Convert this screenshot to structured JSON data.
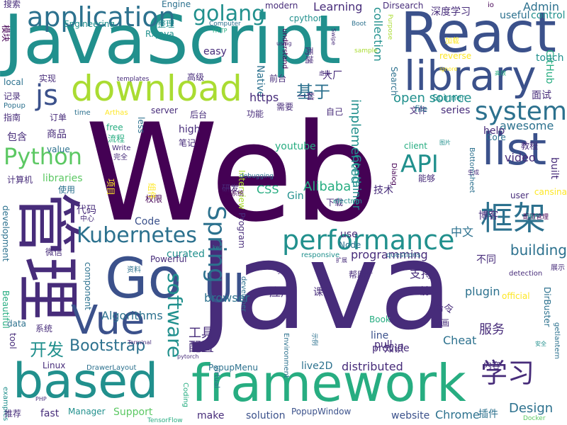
{
  "palette": {
    "background": "#ffffff",
    "dark_purple": "#440154",
    "indigo": "#472c7a",
    "slate_blue": "#3b518b",
    "steel_blue": "#2c718e",
    "teal": "#21908d",
    "sea_green": "#27ad81",
    "green": "#5cc863",
    "lime": "#aadc32",
    "yellow": "#fde725"
  },
  "words": [
    "Web",
    "Java",
    "JavaScript",
    "React",
    "framework",
    "管理",
    "based",
    "library",
    "Go",
    "list",
    "download",
    "application",
    "Vue",
    "UI",
    "框架",
    "system",
    "performance",
    "Python",
    "Spring",
    "Kubernetes",
    "学习",
    "js",
    "API",
    "golang",
    "Alibaba",
    "software",
    "open source",
    "基于",
    "Bootstrap",
    "开发",
    "building",
    "programming",
    "distributed",
    "Algorithms",
    "Container",
    "browser",
    "awesome",
    "collection",
    "implemented",
    "plugin",
    "工具",
    "配置",
    "Chrome",
    "Design",
    "Cheat",
    "服务",
    "应用",
    "支持",
    "video",
    "Learning",
    "Admin",
    "深度学习",
    "Dirsearch",
    "modern",
    "cpython",
    "Engine",
    "搜索",
    "Engineering",
    "RxJava",
    "Native",
    "understand",
    "https",
    "Search",
    "GitHub",
    "control",
    "touch",
    "easy",
    "Computer",
    "Boot",
    "useful",
    "Purpose",
    "模块",
    "实现",
    "local",
    "记录",
    "指南",
    "Popup",
    "订单",
    "time",
    "Arthas",
    "商品",
    "包含",
    "high",
    "free",
    "流程",
    "笔记",
    "value",
    "Write",
    "完全",
    "计算机",
    "libraries",
    "使用",
    "代码",
    "中心",
    "权限",
    "Code",
    "development",
    "curated",
    "component",
    "Beautiful",
    "微信",
    "资料",
    "Powerful",
    "data",
    "系统",
    "examples",
    "推荐",
    "fast",
    "Manager",
    "Support",
    "make",
    "solution",
    "website",
    "插件",
    "PopupWindow",
    "PopupMenu",
    "live2D",
    "DrawerLayout",
    "Linux",
    "tool",
    "Coding",
    "developer",
    "virtual",
    "Environment",
    "Book",
    "pull",
    "line",
    "provide",
    "知识",
    "内容",
    "getlantern",
    "命令",
    "动画",
    "DirBuster",
    "前端",
    "帮助",
    "official",
    "课程",
    "不同",
    "detection",
    "展示",
    "questions",
    "responsive",
    "Node",
    "Program",
    "use",
    "下载",
    "技术",
    "CSS",
    "Gin",
    "electron",
    "Interview",
    "youtube",
    "研发",
    "管理系统",
    "debugging",
    "cansina",
    "博客",
    "user",
    "Core",
    "教程",
    "Bottomsheet",
    "Dialog",
    "client",
    "能够",
    "built",
    "中文",
    "help",
    "Spinner",
    "文件",
    "file",
    "series",
    "面试",
    "server",
    "less",
    "功能",
    "需要",
    "后台",
    "一套",
    "大厂",
    "自己",
    "前台",
    "高级",
    "templates",
    "reverse",
    "io",
    "整理",
    "项目",
    "组件",
    "两端",
    "加载",
    "示例",
    "虚拟",
    "TensorFlow",
    "Docker",
    "配置管理",
    "用户",
    "sample",
    "Swipe",
    "HTTP",
    "ignore",
    "using",
    "key",
    "手机",
    "扩展",
    "类库",
    "生成",
    "高效",
    "图片",
    "安全",
    "Terminal",
    "pytorch",
    "PHP"
  ]
}
